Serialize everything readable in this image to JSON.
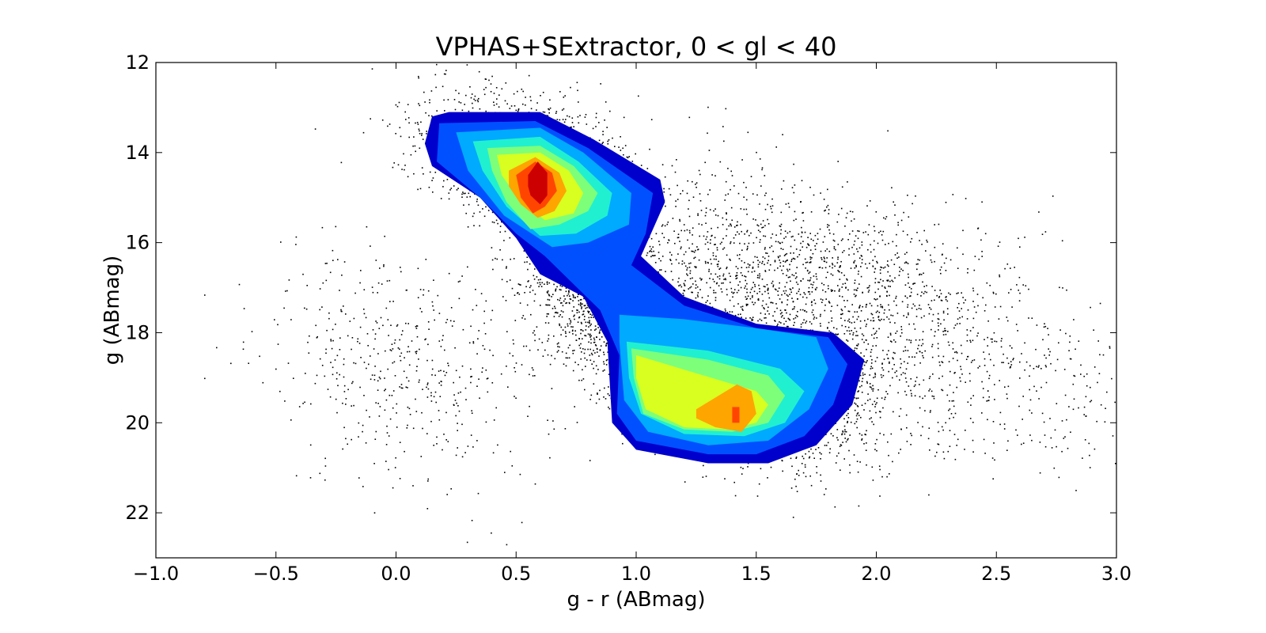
{
  "chart_data": {
    "type": "scatter",
    "title": "VPHAS+SExtractor, 0 < gl < 40",
    "xlabel": "g - r (ABmag)",
    "ylabel": "g (ABmag)",
    "xlim": [
      -1.0,
      3.0
    ],
    "ylim": [
      23,
      12
    ],
    "y_inverted": true,
    "grid": false,
    "xticks": [
      -1.0,
      -0.5,
      0.0,
      0.5,
      1.0,
      1.5,
      2.0,
      2.5,
      3.0
    ],
    "xtick_labels": [
      "−1.0",
      "−0.5",
      "0.0",
      "0.5",
      "1.0",
      "1.5",
      "2.0",
      "2.5",
      "3.0"
    ],
    "yticks": [
      12,
      14,
      16,
      18,
      20,
      22
    ],
    "ytick_labels": [
      "12",
      "14",
      "16",
      "18",
      "20",
      "22"
    ],
    "scatter_color": "#000000",
    "scatter_clusters": [
      {
        "x": 0.55,
        "y": 14.2,
        "sx": 0.22,
        "sy": 0.7,
        "n": 1800
      },
      {
        "x": 0.85,
        "y": 17.0,
        "sx": 0.18,
        "sy": 0.9,
        "n": 1400
      },
      {
        "x": 1.45,
        "y": 19.2,
        "sx": 0.28,
        "sy": 0.8,
        "n": 2200
      },
      {
        "x": 1.65,
        "y": 16.8,
        "sx": 0.4,
        "sy": 1.1,
        "n": 1600
      },
      {
        "x": 0.05,
        "y": 18.8,
        "sx": 0.3,
        "sy": 1.3,
        "n": 500
      },
      {
        "x": 2.4,
        "y": 18.5,
        "sx": 0.35,
        "sy": 1.2,
        "n": 500
      }
    ],
    "contour_levels": [
      {
        "level": 1,
        "color": "#0000cd",
        "x": [
          0.15,
          0.22,
          0.6,
          0.82,
          1.1,
          1.12,
          1.02,
          1.2,
          1.5,
          1.82,
          1.95,
          1.9,
          1.75,
          1.55,
          1.3,
          1.0,
          0.9,
          0.88,
          0.78,
          0.6,
          0.5,
          0.35,
          0.15,
          0.12
        ],
        "y": [
          13.2,
          13.1,
          13.1,
          13.7,
          14.6,
          15.1,
          16.3,
          17.2,
          17.8,
          18.0,
          18.6,
          19.6,
          20.5,
          20.9,
          20.9,
          20.6,
          20.0,
          18.2,
          17.2,
          16.7,
          15.9,
          15.0,
          14.3,
          13.8
        ]
      },
      {
        "level": 2,
        "color": "#0050ff",
        "x": [
          0.18,
          0.58,
          0.8,
          1.07,
          1.04,
          0.98,
          1.2,
          1.5,
          1.8,
          1.88,
          1.82,
          1.7,
          1.5,
          1.3,
          1.0,
          0.92,
          0.93,
          0.85,
          0.62,
          0.5,
          0.35,
          0.17
        ],
        "y": [
          13.35,
          13.3,
          13.9,
          14.9,
          15.8,
          16.5,
          17.4,
          17.9,
          18.1,
          18.7,
          19.6,
          20.3,
          20.7,
          20.7,
          20.4,
          19.8,
          18.5,
          17.5,
          16.3,
          15.8,
          15.0,
          14.2
        ]
      },
      {
        "level": 3,
        "color": "#00aaff",
        "x": [
          0.25,
          0.6,
          0.78,
          0.98,
          0.97,
          0.8,
          0.65,
          0.45,
          0.3
        ],
        "y": [
          13.55,
          13.45,
          14.0,
          14.9,
          15.6,
          16.0,
          16.1,
          15.4,
          14.4
        ]
      },
      {
        "level": 3,
        "color": "#00aaff",
        "x": [
          0.93,
          1.2,
          1.5,
          1.75,
          1.8,
          1.72,
          1.55,
          1.3,
          1.05,
          0.95,
          0.93
        ],
        "y": [
          17.6,
          17.7,
          17.9,
          18.1,
          18.8,
          19.7,
          20.4,
          20.5,
          20.2,
          19.5,
          18.2
        ]
      },
      {
        "level": 4,
        "color": "#20f0d0",
        "x": [
          0.32,
          0.6,
          0.76,
          0.9,
          0.88,
          0.75,
          0.6,
          0.46,
          0.36
        ],
        "y": [
          13.75,
          13.65,
          14.2,
          14.9,
          15.4,
          15.8,
          15.85,
          15.2,
          14.4
        ]
      },
      {
        "level": 4,
        "color": "#20f0d0",
        "x": [
          0.96,
          1.3,
          1.6,
          1.7,
          1.62,
          1.45,
          1.2,
          1.02,
          0.97
        ],
        "y": [
          18.2,
          18.4,
          18.8,
          19.3,
          20.0,
          20.3,
          20.25,
          19.8,
          19.0
        ]
      },
      {
        "level": 5,
        "color": "#7dff7a",
        "x": [
          0.38,
          0.6,
          0.74,
          0.84,
          0.8,
          0.68,
          0.56,
          0.46,
          0.4
        ],
        "y": [
          13.9,
          13.85,
          14.3,
          14.9,
          15.3,
          15.6,
          15.7,
          15.1,
          14.4
        ]
      },
      {
        "level": 5,
        "color": "#7dff7a",
        "x": [
          0.98,
          1.3,
          1.55,
          1.62,
          1.55,
          1.4,
          1.2,
          1.03,
          0.99
        ],
        "y": [
          18.35,
          18.6,
          18.95,
          19.4,
          20.0,
          20.2,
          20.15,
          19.8,
          19.0
        ]
      },
      {
        "level": 6,
        "color": "#d8ff20",
        "x": [
          0.42,
          0.6,
          0.72,
          0.78,
          0.74,
          0.62,
          0.52,
          0.44
        ],
        "y": [
          14.05,
          14.0,
          14.4,
          14.9,
          15.35,
          15.5,
          15.1,
          14.5
        ]
      },
      {
        "level": 6,
        "color": "#d8ff20",
        "x": [
          1.0,
          1.25,
          1.5,
          1.55,
          1.5,
          1.38,
          1.2,
          1.04,
          1.0
        ],
        "y": [
          18.5,
          18.9,
          19.3,
          19.6,
          20.0,
          20.15,
          20.1,
          19.7,
          19.0
        ]
      },
      {
        "level": 7,
        "color": "#ffa500",
        "x": [
          0.47,
          0.58,
          0.68,
          0.71,
          0.66,
          0.59,
          0.52,
          0.47
        ],
        "y": [
          14.4,
          14.1,
          14.45,
          14.85,
          15.3,
          15.45,
          15.15,
          14.75
        ]
      },
      {
        "level": 7,
        "color": "#ffa500",
        "x": [
          1.25,
          1.42,
          1.48,
          1.5,
          1.44,
          1.33,
          1.25
        ],
        "y": [
          19.7,
          19.15,
          19.3,
          19.8,
          20.2,
          20.1,
          19.9
        ]
      },
      {
        "level": 8,
        "color": "#ff4500",
        "x": [
          0.5,
          0.58,
          0.65,
          0.67,
          0.62,
          0.57,
          0.52
        ],
        "y": [
          14.5,
          14.2,
          14.45,
          14.85,
          15.2,
          15.35,
          15.0
        ]
      },
      {
        "level": 8,
        "color": "#ff4500",
        "x": [
          1.4,
          1.43,
          1.43,
          1.4
        ],
        "y": [
          19.65,
          19.65,
          20.0,
          20.0
        ]
      },
      {
        "level": 9,
        "color": "#cc0000",
        "x": [
          0.55,
          0.59,
          0.63,
          0.63,
          0.6,
          0.56,
          0.55
        ],
        "y": [
          14.5,
          14.2,
          14.45,
          14.95,
          15.15,
          14.95,
          14.75
        ]
      }
    ]
  }
}
